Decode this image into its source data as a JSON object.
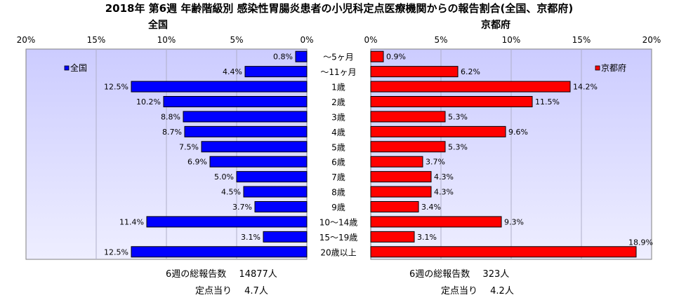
{
  "chart_data": {
    "type": "bar",
    "title": "2018年 第6週 年齢階級別 感染性胃腸炎患者の小児科定点医療機関からの報告割合(全国、京都府)",
    "categories": [
      "～5ヶ月",
      "～11ヶ月",
      "1歳",
      "2歳",
      "3歳",
      "4歳",
      "5歳",
      "6歳",
      "7歳",
      "8歳",
      "9歳",
      "10～14歳",
      "15～19歳",
      "20歳以上"
    ],
    "panels": [
      {
        "name": "全国",
        "legend": "全国",
        "color": "#0000ff",
        "orientation": "reversed",
        "values": [
          0.8,
          4.4,
          12.5,
          10.2,
          8.8,
          8.7,
          7.5,
          6.9,
          5.0,
          4.5,
          3.7,
          11.4,
          3.1,
          12.5
        ],
        "value_labels": [
          "0.8%",
          "4.4%",
          "12.5%",
          "10.2%",
          "8.8%",
          "8.7%",
          "7.5%",
          "6.9%",
          "5.0%",
          "4.5%",
          "3.7%",
          "11.4%",
          "3.1%",
          "12.5%"
        ],
        "xlim": [
          0,
          20
        ],
        "ticks": [
          "20%",
          "15%",
          "10%",
          "5%",
          "0%"
        ]
      },
      {
        "name": "京都府",
        "legend": "京都府",
        "color": "#ff0000",
        "orientation": "normal",
        "values": [
          0.9,
          6.2,
          14.2,
          11.5,
          5.3,
          9.6,
          5.3,
          3.7,
          4.3,
          4.3,
          3.4,
          9.3,
          3.1,
          18.9
        ],
        "value_labels": [
          "0.9%",
          "6.2%",
          "14.2%",
          "11.5%",
          "5.3%",
          "9.6%",
          "5.3%",
          "3.7%",
          "4.3%",
          "4.3%",
          "3.4%",
          "9.3%",
          "3.1%",
          "18.9%"
        ],
        "xlim": [
          0,
          20
        ],
        "ticks": [
          "0%",
          "5%",
          "10%",
          "15%",
          "20%"
        ]
      }
    ],
    "grid": true,
    "legend_placement": "top-left / top-right"
  },
  "footer": {
    "national_total_label": "6週の総報告数",
    "national_total_value": "14877人",
    "national_per_label": "定点当り",
    "national_per_value": "4.7人",
    "kyoto_total_label": "6週の総報告数",
    "kyoto_total_value": "323人",
    "kyoto_per_label": "定点当り",
    "kyoto_per_value": "4.2人"
  },
  "colors": {
    "plot_gradient_top": "#ccccff",
    "plot_gradient_bottom": "#eeeeff"
  }
}
